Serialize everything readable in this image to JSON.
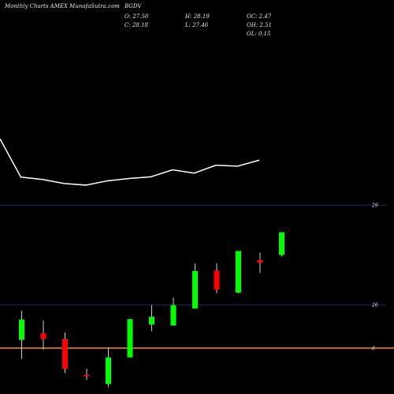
{
  "header": {
    "source": "Monthly Charts AMEX  MunafaSutra.com",
    "symbol": "BGDV",
    "open": "O: 27.50",
    "close": "C: 28.18",
    "high": "H: 28.19",
    "low": "L: 27.46",
    "oc": "OC: 2.47",
    "oh": "OH: 2.51",
    "ol": "OL: 0.15"
  },
  "colors": {
    "background": "#000000",
    "up": "#00ff00",
    "down": "#ff0000",
    "wick": "#cccccc",
    "line": "#ffffff",
    "gridline": "#1c2a66",
    "baseline": "#ff8c00",
    "text": "#e6e6e6"
  },
  "chart_data": {
    "type": "candlestick",
    "title": "BGDV",
    "xlabel": "",
    "ylabel": "",
    "ylim": [
      23.32,
      29.48
    ],
    "ytick_labels": [
      "29",
      "26",
      "8"
    ],
    "candles": [
      {
        "open": 24.95,
        "close": 25.56,
        "high": 25.82,
        "low": 24.37
      },
      {
        "open": 25.14,
        "close": 24.97,
        "high": 25.53,
        "low": 24.65
      },
      {
        "open": 24.98,
        "close": 24.08,
        "high": 25.17,
        "low": 23.95
      },
      {
        "open": 23.9,
        "close": 23.86,
        "high": 24.08,
        "low": 23.74
      },
      {
        "open": 23.62,
        "close": 24.42,
        "high": 24.73,
        "low": 23.52
      },
      {
        "open": 24.42,
        "close": 25.57,
        "high": 25.57,
        "low": 24.42
      },
      {
        "open": 25.41,
        "close": 25.64,
        "high": 25.99,
        "low": 25.21
      },
      {
        "open": 25.38,
        "close": 25.99,
        "high": 26.22,
        "low": 25.38
      },
      {
        "open": 25.89,
        "close": 27.02,
        "high": 27.24,
        "low": 25.89
      },
      {
        "open": 27.03,
        "close": 26.46,
        "high": 27.25,
        "low": 26.34
      },
      {
        "open": 26.37,
        "close": 27.62,
        "high": 27.62,
        "low": 26.35
      },
      {
        "open": 27.35,
        "close": 27.27,
        "high": 27.57,
        "low": 26.96
      },
      {
        "open": 27.5,
        "close": 28.18,
        "high": 28.19,
        "low": 27.46
      }
    ],
    "line_series": [
      30.99,
      29.84,
      29.77,
      29.65,
      29.6,
      29.73,
      29.8,
      29.85,
      30.06,
      29.96,
      30.2,
      30.17,
      30.35
    ],
    "reference_lines": [
      29,
      26
    ],
    "base_line": 24.7
  }
}
